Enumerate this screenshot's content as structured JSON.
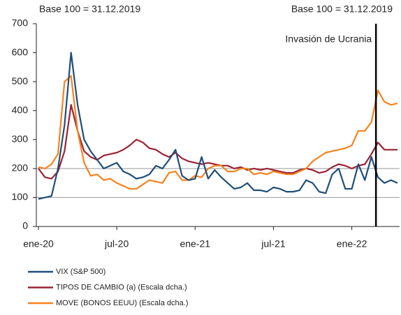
{
  "chart_data": {
    "type": "line",
    "subtitle_left": "Base 100 = 31.12.2019",
    "subtitle_right": "Base 100 = 31.12.2019",
    "categories": [
      "ene-20",
      null,
      null,
      null,
      null,
      null,
      null,
      null,
      null,
      null,
      null,
      null,
      "jul-20",
      null,
      null,
      null,
      null,
      null,
      null,
      null,
      null,
      null,
      null,
      null,
      "ene-21",
      null,
      null,
      null,
      null,
      null,
      null,
      null,
      null,
      null,
      null,
      null,
      "jul-21",
      null,
      null,
      null,
      null,
      null,
      null,
      null,
      null,
      null,
      null,
      null,
      "ene-22",
      null,
      null,
      null,
      null,
      null,
      null,
      null
    ],
    "series": [
      {
        "name": "VIX (S&P 500)",
        "color": "#1f4e79",
        "values": [
          95,
          100,
          105,
          200,
          350,
          600,
          420,
          300,
          260,
          230,
          200,
          210,
          220,
          190,
          180,
          165,
          170,
          180,
          210,
          200,
          230,
          265,
          175,
          160,
          165,
          240,
          165,
          195,
          170,
          150,
          130,
          135,
          150,
          125,
          125,
          120,
          135,
          130,
          120,
          120,
          125,
          160,
          150,
          120,
          115,
          180,
          200,
          130,
          130,
          215,
          160,
          240,
          170,
          150,
          160,
          150
        ]
      },
      {
        "name": "TIPOS DE CAMBIO (a) (Escala dcha.)",
        "color": "#9b2335",
        "values": [
          200,
          170,
          165,
          190,
          260,
          420,
          330,
          260,
          240,
          230,
          245,
          250,
          255,
          265,
          280,
          300,
          290,
          270,
          265,
          250,
          240,
          255,
          235,
          225,
          220,
          215,
          220,
          215,
          210,
          210,
          200,
          205,
          195,
          200,
          195,
          200,
          195,
          190,
          185,
          185,
          195,
          200,
          195,
          185,
          190,
          205,
          215,
          210,
          200,
          210,
          215,
          250,
          290,
          265,
          265,
          265
        ]
      },
      {
        "name": "MOVE (BONOS EEUU) (Escala dcha.)",
        "color": "#f5821f",
        "values": [
          205,
          200,
          215,
          250,
          500,
          520,
          330,
          220,
          175,
          180,
          160,
          165,
          150,
          140,
          130,
          130,
          145,
          160,
          155,
          150,
          185,
          190,
          160,
          160,
          175,
          170,
          200,
          210,
          210,
          190,
          190,
          200,
          200,
          180,
          185,
          180,
          190,
          185,
          180,
          180,
          190,
          200,
          225,
          240,
          255,
          260,
          265,
          270,
          280,
          330,
          330,
          360,
          470,
          430,
          420,
          425
        ]
      }
    ],
    "ylim": [
      0,
      700
    ],
    "yticks": [
      0,
      100,
      200,
      300,
      400,
      500,
      600,
      700
    ],
    "grid_lines": [
      100,
      200
    ],
    "annotations": [
      {
        "text": "Invasión de Ucrania",
        "x": 51.7
      }
    ]
  }
}
